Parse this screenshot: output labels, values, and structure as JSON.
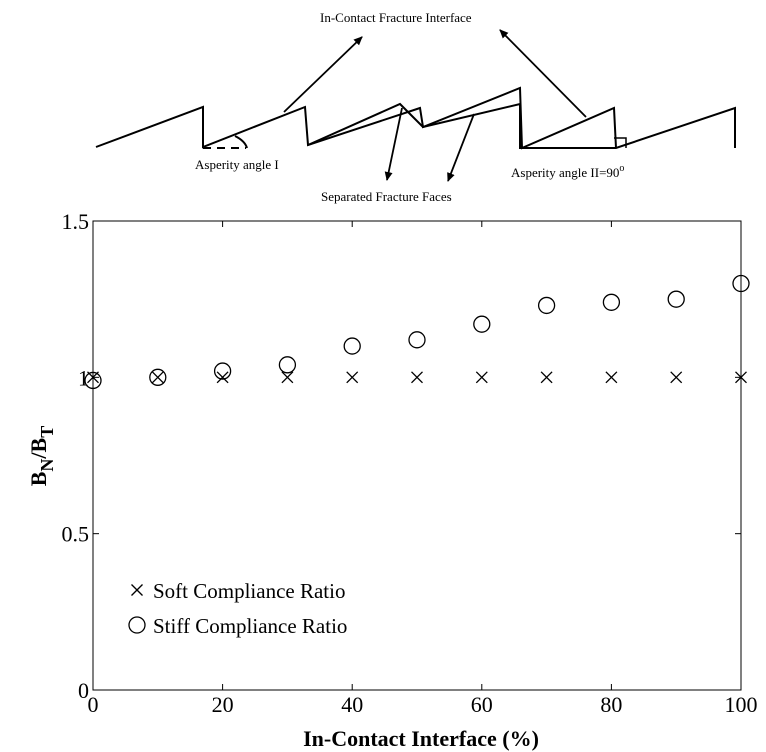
{
  "diagram": {
    "labels": {
      "in_contact": "In-Contact Fracture Interface",
      "asperity_1": "Asperity angle I",
      "separated": "Separated Fracture Faces",
      "asperity_2": "Asperity angle II=90",
      "asperity_2_sup": "o"
    }
  },
  "chart_data": {
    "type": "scatter",
    "x": [
      0,
      10,
      20,
      30,
      40,
      50,
      60,
      70,
      80,
      90,
      100
    ],
    "series": [
      {
        "name": "Soft Compliance Ratio",
        "marker": "x",
        "values": [
          1.0,
          1.0,
          1.0,
          1.0,
          1.0,
          1.0,
          1.0,
          1.0,
          1.0,
          1.0,
          1.0
        ]
      },
      {
        "name": "Stiff Compliance Ratio",
        "marker": "o",
        "values": [
          0.99,
          1.0,
          1.02,
          1.04,
          1.1,
          1.12,
          1.17,
          1.23,
          1.24,
          1.25,
          1.3
        ]
      }
    ],
    "xlabel": "In-Contact Interface (%)",
    "ylabel": {
      "main": "B",
      "sub1": "N",
      "mid": "/B",
      "sub2": "T"
    },
    "xlim": [
      0,
      100
    ],
    "ylim": [
      0,
      1.5
    ],
    "xticks": [
      "0",
      "20",
      "40",
      "60",
      "80",
      "100"
    ],
    "yticks": [
      "0",
      "0.5",
      "1",
      "1.5"
    ],
    "grid": false,
    "legend_position": "bottom-left"
  }
}
